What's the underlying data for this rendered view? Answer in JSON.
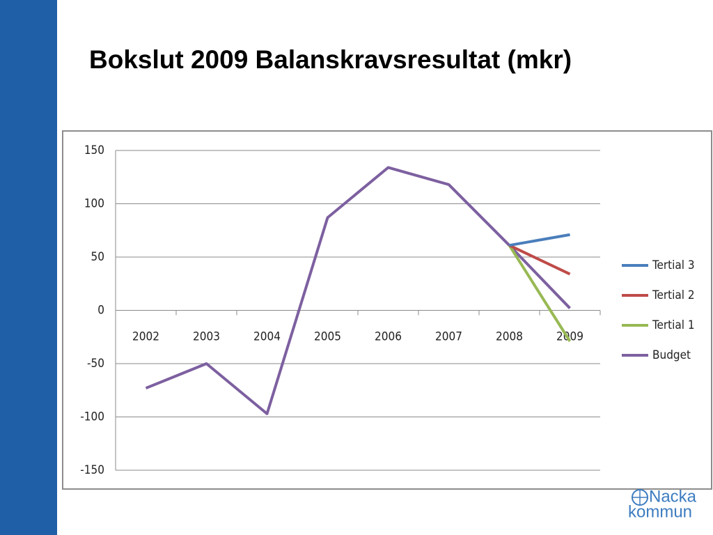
{
  "title": "Bokslut 2009 Balanskravsresultat (mkr)",
  "logo": {
    "line1": "Nacka",
    "line2": "kommun"
  },
  "chart_data": {
    "type": "line",
    "categories": [
      "2002",
      "2003",
      "2004",
      "2005",
      "2006",
      "2007",
      "2008",
      "2009"
    ],
    "series": [
      {
        "name": "Tertial 3",
        "color": "#4a7ebb",
        "values": [
          null,
          null,
          null,
          null,
          null,
          null,
          61,
          71
        ]
      },
      {
        "name": "Tertial 2",
        "color": "#be4b48",
        "values": [
          null,
          null,
          null,
          null,
          null,
          null,
          61,
          34
        ]
      },
      {
        "name": "Tertial 1",
        "color": "#98b954",
        "values": [
          null,
          null,
          null,
          null,
          null,
          null,
          61,
          -29
        ]
      },
      {
        "name": "Budget",
        "color": "#7d60a0",
        "values": [
          -73,
          -50,
          -97,
          87,
          134,
          118,
          61,
          2
        ]
      }
    ],
    "ylim": [
      -150,
      150
    ],
    "yticks": [
      -150,
      -100,
      -50,
      0,
      50,
      100,
      150
    ],
    "grid": true,
    "legend": "right"
  }
}
